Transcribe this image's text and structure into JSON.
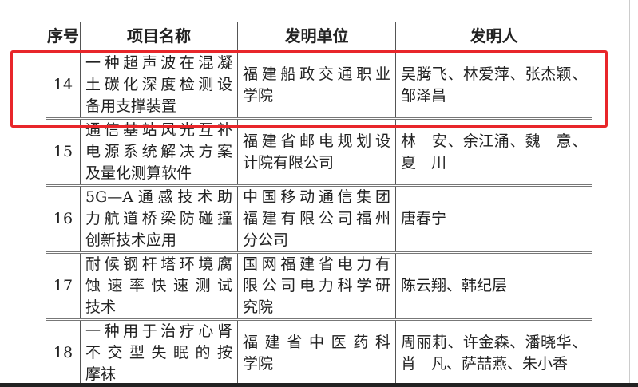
{
  "table": {
    "headers": [
      "序号",
      "项目名称",
      "发明单位",
      "发明人"
    ],
    "rows": [
      {
        "no": "14",
        "name": [
          "一种超声波在混凝",
          "土碳化深度检测设",
          "备用支撑装置"
        ],
        "org": [
          "福建船政交通职业",
          "学院"
        ],
        "inventors": [
          "吴腾飞、林爱萍、张杰颖、",
          "邹泽昌"
        ]
      },
      {
        "no": "15",
        "name": [
          "通信基站风光互补",
          "电源系统解决方案",
          "及量化测算软件"
        ],
        "org": [
          "福建省邮电规划设",
          "计院有限公司"
        ],
        "inventors": [
          "林　安、余江涌、魏　意、",
          "夏　川"
        ]
      },
      {
        "no": "16",
        "name": [
          "5G—A通感技术助",
          "力航道桥梁防碰撞",
          "创新技术应用"
        ],
        "org": [
          "中国移动通信集团",
          "福建有限公司福州",
          "分公司"
        ],
        "inventors": [
          "唐春宁"
        ]
      },
      {
        "no": "17",
        "name": [
          "耐候钢杆塔环境腐",
          "蚀速率快速测试",
          "技术"
        ],
        "org": [
          "国网福建省电力有",
          "限公司电力科学研",
          "究院"
        ],
        "inventors": [
          "陈云翔、韩纪层"
        ]
      },
      {
        "no": "18",
        "name": [
          "一种用于治疗心肾",
          "不交型失眠的按",
          "摩袜"
        ],
        "org": [
          "福建省中医药科",
          "学院"
        ],
        "inventors": [
          "周丽莉、许金森、潘晓华、",
          "肖　凡、萨喆燕、朱小香"
        ]
      }
    ]
  },
  "highlight": {
    "row": "14",
    "color": "#e8262a"
  }
}
